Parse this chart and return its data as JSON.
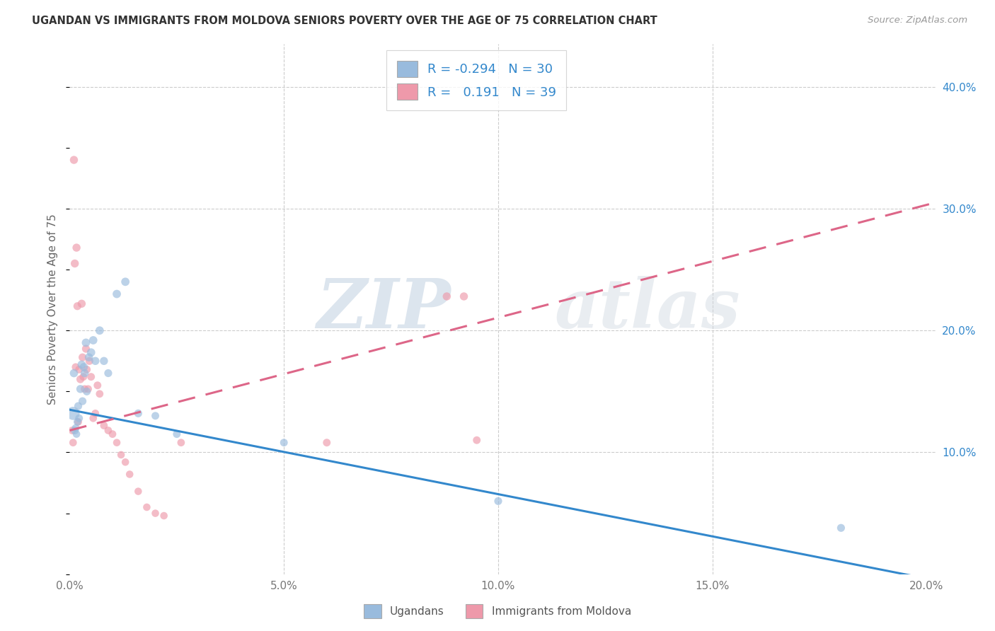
{
  "title": "UGANDAN VS IMMIGRANTS FROM MOLDOVA SENIORS POVERTY OVER THE AGE OF 75 CORRELATION CHART",
  "source": "Source: ZipAtlas.com",
  "ylabel": "Seniors Poverty Over the Age of 75",
  "xlim": [
    0.0,
    0.202
  ],
  "ylim": [
    0.0,
    0.435
  ],
  "xticks": [
    0.0,
    0.05,
    0.1,
    0.15,
    0.2
  ],
  "yticks_right": [
    0.1,
    0.2,
    0.3,
    0.4
  ],
  "ytick_labels": [
    "10.0%",
    "20.0%",
    "30.0%",
    "40.0%"
  ],
  "xtick_labels": [
    "0.0%",
    "5.0%",
    "10.0%",
    "15.0%",
    "20.0%"
  ],
  "bg": "#ffffff",
  "grid_color": "#cccccc",
  "ugandan_dot_color": "#99bbdd",
  "moldova_dot_color": "#ee99aa",
  "ugandan_line_color": "#3388cc",
  "moldova_line_color": "#dd6688",
  "axis_tick_color": "#3388cc",
  "legend_R_ugandan": "-0.294",
  "legend_N_ugandan": "30",
  "legend_R_moldova": "0.191",
  "legend_N_moldova": "39",
  "legend_label_ugandan": "Ugandans",
  "legend_label_moldova": "Immigrants from Moldova",
  "watermark_zip": "ZIP",
  "watermark_atlas": "atlas",
  "ugandan_x": [
    0.0008,
    0.001,
    0.0012,
    0.0014,
    0.0016,
    0.0018,
    0.002,
    0.0022,
    0.0025,
    0.0028,
    0.003,
    0.0033,
    0.0035,
    0.0038,
    0.004,
    0.0045,
    0.005,
    0.0055,
    0.006,
    0.007,
    0.008,
    0.009,
    0.011,
    0.013,
    0.016,
    0.02,
    0.025,
    0.05,
    0.1,
    0.18
  ],
  "ugandan_y": [
    0.132,
    0.165,
    0.118,
    0.12,
    0.115,
    0.125,
    0.138,
    0.128,
    0.152,
    0.172,
    0.142,
    0.17,
    0.165,
    0.19,
    0.15,
    0.178,
    0.182,
    0.192,
    0.175,
    0.2,
    0.175,
    0.165,
    0.23,
    0.24,
    0.132,
    0.13,
    0.115,
    0.108,
    0.06,
    0.038
  ],
  "ugandan_sizes": [
    180,
    70,
    65,
    60,
    58,
    60,
    65,
    62,
    68,
    72,
    65,
    70,
    68,
    72,
    65,
    70,
    72,
    72,
    68,
    72,
    68,
    65,
    72,
    72,
    65,
    62,
    62,
    62,
    65,
    65
  ],
  "moldova_x": [
    0.0006,
    0.0008,
    0.001,
    0.0012,
    0.0014,
    0.0016,
    0.0018,
    0.002,
    0.0022,
    0.0025,
    0.0028,
    0.003,
    0.0032,
    0.0035,
    0.0038,
    0.004,
    0.0043,
    0.0046,
    0.005,
    0.0055,
    0.006,
    0.0065,
    0.007,
    0.008,
    0.009,
    0.01,
    0.011,
    0.012,
    0.013,
    0.014,
    0.016,
    0.018,
    0.02,
    0.022,
    0.026,
    0.06,
    0.088,
    0.092,
    0.095
  ],
  "moldova_y": [
    0.118,
    0.108,
    0.34,
    0.255,
    0.17,
    0.268,
    0.22,
    0.125,
    0.168,
    0.16,
    0.222,
    0.178,
    0.162,
    0.152,
    0.185,
    0.168,
    0.152,
    0.175,
    0.162,
    0.128,
    0.132,
    0.155,
    0.148,
    0.122,
    0.118,
    0.115,
    0.108,
    0.098,
    0.092,
    0.082,
    0.068,
    0.055,
    0.05,
    0.048,
    0.108,
    0.108,
    0.228,
    0.228,
    0.11
  ],
  "moldova_sizes": [
    62,
    60,
    68,
    68,
    62,
    68,
    65,
    60,
    62,
    65,
    68,
    65,
    62,
    62,
    65,
    62,
    62,
    65,
    62,
    60,
    60,
    62,
    60,
    60,
    60,
    60,
    58,
    58,
    58,
    58,
    58,
    58,
    58,
    58,
    60,
    62,
    68,
    68,
    62
  ],
  "trend_ug_x0": 0.0,
  "trend_ug_y0": 0.135,
  "trend_ug_x1": 0.202,
  "trend_ug_y1": -0.005,
  "trend_mo_x0": 0.0,
  "trend_mo_y0": 0.118,
  "trend_mo_x1": 0.202,
  "trend_mo_y1": 0.305
}
